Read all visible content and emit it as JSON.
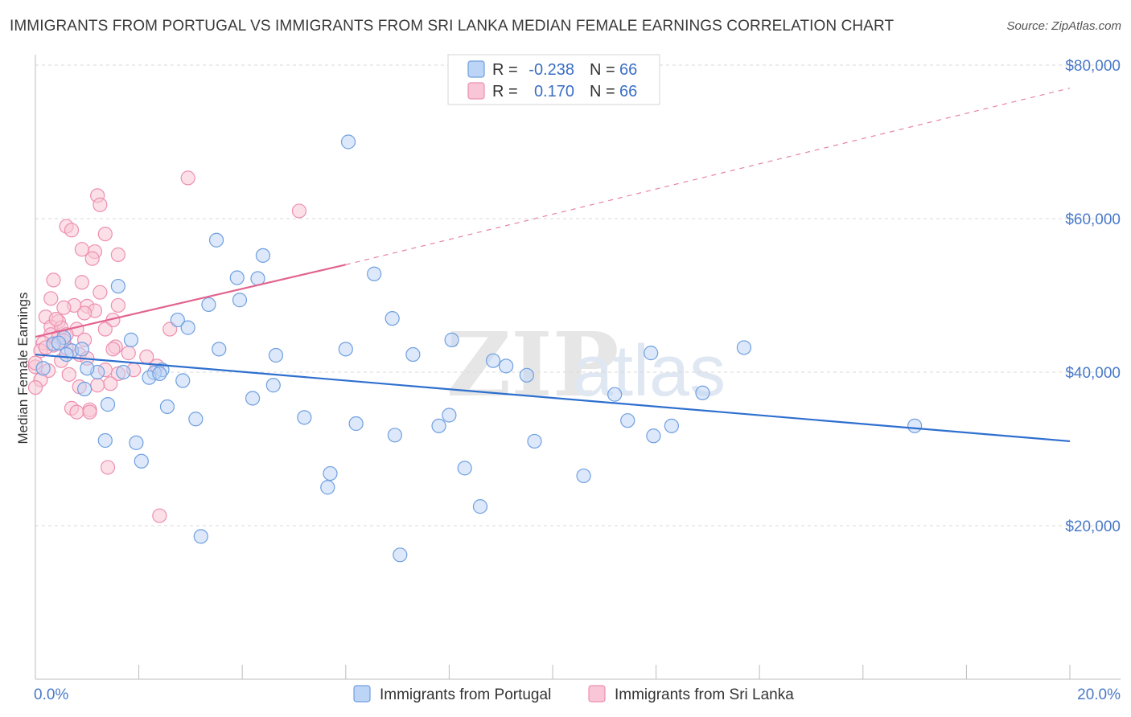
{
  "title": "IMMIGRANTS FROM PORTUGAL VS IMMIGRANTS FROM SRI LANKA MEDIAN FEMALE EARNINGS CORRELATION CHART",
  "source": "Source: ZipAtlas.com",
  "watermark": {
    "zip": "ZIP",
    "atlas": "atlas"
  },
  "legend": {
    "rows": [
      {
        "r_label": "R =",
        "r_value": "-0.238",
        "n_label": "N =",
        "n_value": "66"
      },
      {
        "r_label": "R =",
        "r_value": "0.170",
        "n_label": "N =",
        "n_value": "66"
      }
    ]
  },
  "colors": {
    "portugal": "#6f9fe0",
    "portugal_fill": "#bcd4f5",
    "portugal_line": "#2e6fcf",
    "srilanka": "#ee8fb0",
    "srilanka_fill": "#f8c6d6",
    "srilanka_line": "#e2648e",
    "grid": "#d9d9d9",
    "tick_text": "#4a7ac9"
  },
  "chart_data": {
    "type": "scatter",
    "title": "IMMIGRANTS FROM PORTUGAL VS IMMIGRANTS FROM SRI LANKA MEDIAN FEMALE EARNINGS CORRELATION CHART",
    "xlabel": "",
    "ylabel": "Median Female Earnings",
    "xlim": [
      0,
      20
    ],
    "ylim": [
      0,
      80000
    ],
    "x_tick_labels": [
      "0.0%",
      "20.0%"
    ],
    "y_ticks": [
      20000,
      40000,
      60000,
      80000
    ],
    "y_tick_labels": [
      "$20,000",
      "$40,000",
      "$60,000",
      "$80,000"
    ],
    "series": [
      {
        "name": "Immigrants from Portugal",
        "R": -0.238,
        "N": 66,
        "trend": {
          "x0": 0.0,
          "y0": 42300,
          "x1": 20.0,
          "y1": 31000
        },
        "points": [
          [
            6.05,
            70000
          ],
          [
            3.5,
            57200
          ],
          [
            4.4,
            55200
          ],
          [
            3.9,
            52300
          ],
          [
            4.3,
            52200
          ],
          [
            6.55,
            52800
          ],
          [
            1.6,
            51200
          ],
          [
            3.35,
            48800
          ],
          [
            3.95,
            49400
          ],
          [
            6.9,
            47000
          ],
          [
            2.75,
            46800
          ],
          [
            2.95,
            45800
          ],
          [
            1.85,
            44200
          ],
          [
            8.05,
            44200
          ],
          [
            0.55,
            44500
          ],
          [
            0.35,
            43700
          ],
          [
            0.7,
            42800
          ],
          [
            0.9,
            43000
          ],
          [
            3.55,
            43000
          ],
          [
            4.65,
            42200
          ],
          [
            6.0,
            43000
          ],
          [
            7.3,
            42300
          ],
          [
            11.9,
            42500
          ],
          [
            13.7,
            43200
          ],
          [
            8.85,
            41500
          ],
          [
            9.1,
            40800
          ],
          [
            2.45,
            40300
          ],
          [
            1.2,
            40000
          ],
          [
            1.7,
            40000
          ],
          [
            2.3,
            39900
          ],
          [
            2.2,
            39300
          ],
          [
            9.5,
            39600
          ],
          [
            2.85,
            38900
          ],
          [
            4.6,
            38300
          ],
          [
            0.95,
            37800
          ],
          [
            11.2,
            37100
          ],
          [
            12.9,
            37300
          ],
          [
            4.2,
            36600
          ],
          [
            1.4,
            35800
          ],
          [
            2.55,
            35500
          ],
          [
            5.2,
            34100
          ],
          [
            8.0,
            34400
          ],
          [
            3.1,
            33900
          ],
          [
            11.45,
            33700
          ],
          [
            6.2,
            33300
          ],
          [
            7.8,
            33000
          ],
          [
            12.3,
            33000
          ],
          [
            17.0,
            33000
          ],
          [
            6.95,
            31800
          ],
          [
            11.95,
            31700
          ],
          [
            1.35,
            31100
          ],
          [
            1.95,
            30800
          ],
          [
            9.65,
            31000
          ],
          [
            2.05,
            28400
          ],
          [
            8.3,
            27500
          ],
          [
            5.7,
            26800
          ],
          [
            5.65,
            25000
          ],
          [
            10.6,
            26500
          ],
          [
            8.6,
            22500
          ],
          [
            3.2,
            18600
          ],
          [
            7.05,
            16200
          ],
          [
            0.15,
            40500
          ],
          [
            0.6,
            42300
          ],
          [
            1.0,
            40500
          ],
          [
            0.45,
            43800
          ],
          [
            2.4,
            39800
          ]
        ]
      },
      {
        "name": "Immigrants from Sri Lanka",
        "R": 0.17,
        "N": 66,
        "trend": {
          "x0": 0.0,
          "y0": 44600,
          "x1": 6.0,
          "y1": 54000,
          "dash_x1": 20.0,
          "dash_y1": 77000
        },
        "points": [
          [
            2.95,
            65300
          ],
          [
            1.2,
            63000
          ],
          [
            1.25,
            61800
          ],
          [
            5.1,
            61000
          ],
          [
            0.6,
            59000
          ],
          [
            0.7,
            58500
          ],
          [
            1.35,
            58000
          ],
          [
            0.9,
            56000
          ],
          [
            1.15,
            55700
          ],
          [
            1.6,
            55300
          ],
          [
            1.1,
            54800
          ],
          [
            0.35,
            52000
          ],
          [
            0.9,
            51700
          ],
          [
            1.25,
            50400
          ],
          [
            0.3,
            49600
          ],
          [
            0.75,
            48700
          ],
          [
            1.6,
            48700
          ],
          [
            0.55,
            48400
          ],
          [
            1.0,
            48600
          ],
          [
            1.15,
            48000
          ],
          [
            0.95,
            47700
          ],
          [
            0.2,
            47200
          ],
          [
            1.5,
            46800
          ],
          [
            0.45,
            46600
          ],
          [
            0.3,
            45900
          ],
          [
            0.5,
            45800
          ],
          [
            0.8,
            45600
          ],
          [
            1.35,
            45600
          ],
          [
            2.6,
            45600
          ],
          [
            0.3,
            44900
          ],
          [
            0.45,
            44600
          ],
          [
            0.6,
            44900
          ],
          [
            0.15,
            43800
          ],
          [
            0.35,
            43500
          ],
          [
            0.6,
            43200
          ],
          [
            1.55,
            43300
          ],
          [
            0.1,
            42800
          ],
          [
            0.85,
            42300
          ],
          [
            1.8,
            42500
          ],
          [
            2.15,
            42000
          ],
          [
            0.5,
            41500
          ],
          [
            1.0,
            41800
          ],
          [
            1.35,
            40300
          ],
          [
            2.35,
            40800
          ],
          [
            0.0,
            40700
          ],
          [
            0.25,
            40200
          ],
          [
            0.65,
            39700
          ],
          [
            1.6,
            39800
          ],
          [
            0.1,
            39000
          ],
          [
            1.45,
            38500
          ],
          [
            0.85,
            38100
          ],
          [
            0.0,
            38000
          ],
          [
            1.2,
            38300
          ],
          [
            0.7,
            35300
          ],
          [
            1.05,
            35100
          ],
          [
            0.8,
            34800
          ],
          [
            1.05,
            34800
          ],
          [
            1.4,
            27600
          ],
          [
            2.4,
            21300
          ],
          [
            0.2,
            43200
          ],
          [
            0.4,
            46900
          ],
          [
            0.55,
            44100
          ],
          [
            1.9,
            40300
          ],
          [
            0.0,
            41200
          ],
          [
            1.5,
            43000
          ],
          [
            0.95,
            44200
          ]
        ]
      }
    ]
  },
  "bottom_legend": [
    {
      "label": "Immigrants from Portugal"
    },
    {
      "label": "Immigrants from Sri Lanka"
    }
  ]
}
